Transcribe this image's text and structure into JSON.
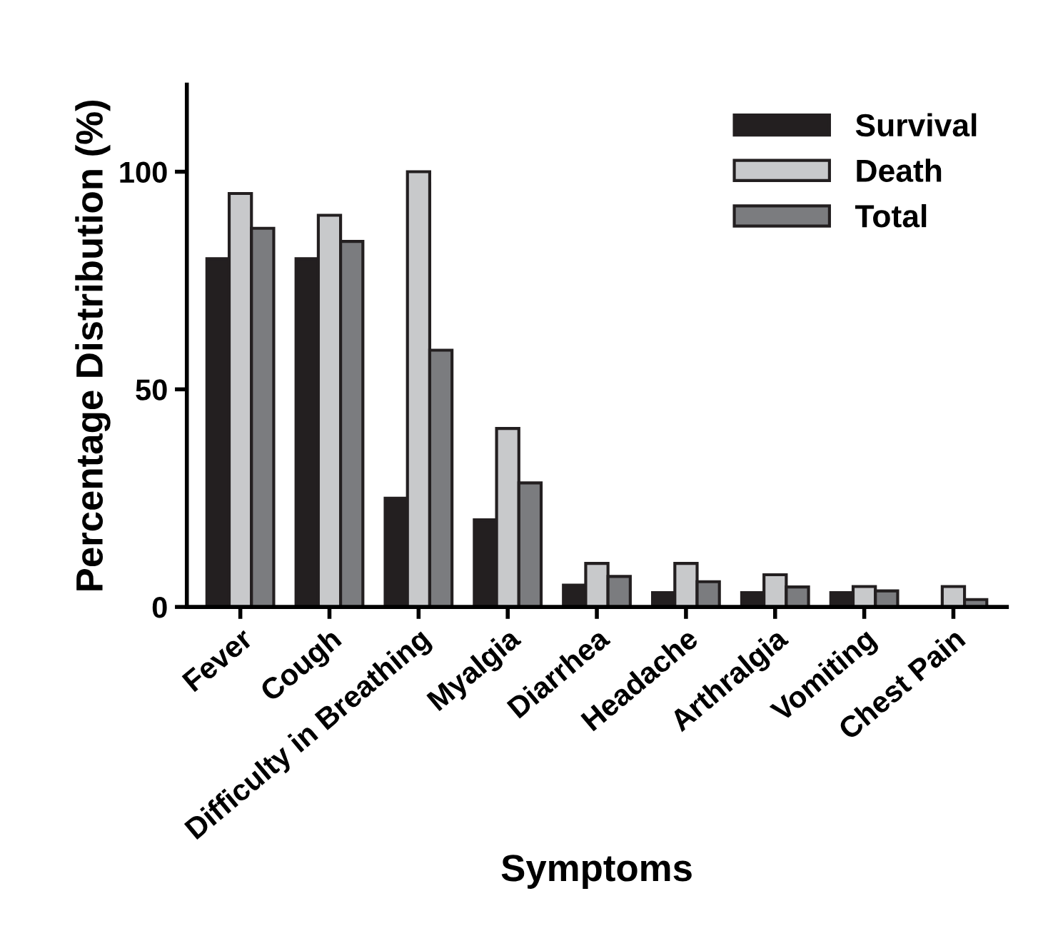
{
  "chart_data": {
    "type": "bar",
    "xlabel": "Symptoms",
    "ylabel": "Percentage Distribution (%)",
    "categories": [
      "Fever",
      "Cough",
      "Difficulty in Breathing",
      "Myalgia",
      "Diarrhea",
      "Headache",
      "Arthralgia",
      "Vomiting",
      "Chest Pain"
    ],
    "series": [
      {
        "name": "Survival",
        "color": "#231f20",
        "values": [
          80,
          80,
          25,
          20,
          5,
          3.3,
          3.3,
          3.3,
          0
        ]
      },
      {
        "name": "Death",
        "color": "#c8c9cb",
        "values": [
          95,
          90,
          100,
          41,
          10,
          10,
          7.4,
          4.7,
          4.7
        ]
      },
      {
        "name": "Total",
        "color": "#7b7c7f",
        "values": [
          87,
          84,
          59,
          28.5,
          7,
          5.8,
          4.6,
          3.7,
          1.7
        ]
      }
    ],
    "ylim": [
      0,
      120
    ],
    "yticks": [
      0,
      50,
      100
    ],
    "legend": "top right",
    "grid": false
  }
}
